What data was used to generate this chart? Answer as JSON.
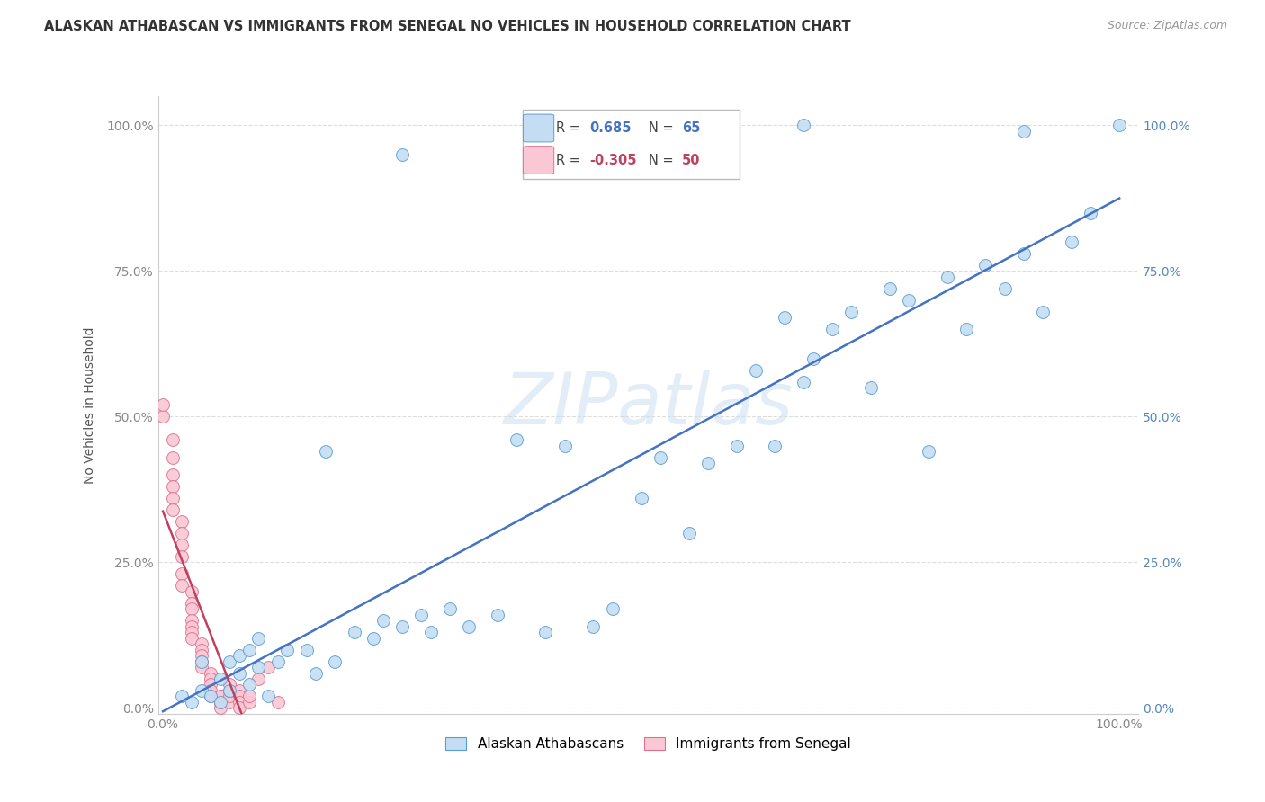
{
  "title": "ALASKAN ATHABASCAN VS IMMIGRANTS FROM SENEGAL NO VEHICLES IN HOUSEHOLD CORRELATION CHART",
  "source": "Source: ZipAtlas.com",
  "ylabel": "No Vehicles in Household",
  "blue_r": 0.685,
  "blue_n": 65,
  "pink_r": -0.305,
  "pink_n": 50,
  "blue_color": "#c5ddf2",
  "blue_edge_color": "#5a9fd4",
  "blue_line_color": "#4472c4",
  "pink_color": "#f9c8d4",
  "pink_edge_color": "#e07090",
  "pink_line_color": "#c04060",
  "watermark_color": "#c8ddf0",
  "watermark_text": "ZIPatlas",
  "grid_color": "#dddddd",
  "tick_color": "#888888",
  "right_tick_color": "#5588bb",
  "title_color": "#333333",
  "source_color": "#999999",
  "blue_x": [
    0.02,
    0.03,
    0.04,
    0.04,
    0.05,
    0.06,
    0.06,
    0.07,
    0.07,
    0.08,
    0.08,
    0.09,
    0.09,
    0.1,
    0.1,
    0.11,
    0.12,
    0.13,
    0.15,
    0.16,
    0.17,
    0.18,
    0.2,
    0.22,
    0.23,
    0.25,
    0.27,
    0.28,
    0.3,
    0.32,
    0.35,
    0.37,
    0.4,
    0.42,
    0.45,
    0.47,
    0.5,
    0.52,
    0.55,
    0.57,
    0.6,
    0.62,
    0.64,
    0.65,
    0.67,
    0.68,
    0.7,
    0.72,
    0.74,
    0.76,
    0.78,
    0.8,
    0.82,
    0.84,
    0.86,
    0.88,
    0.9,
    0.92,
    0.95,
    0.97,
    1.0,
    0.25,
    0.48,
    0.67,
    0.9
  ],
  "blue_y": [
    0.02,
    0.01,
    0.03,
    0.08,
    0.02,
    0.01,
    0.05,
    0.03,
    0.08,
    0.06,
    0.09,
    0.04,
    0.1,
    0.07,
    0.12,
    0.02,
    0.08,
    0.1,
    0.1,
    0.06,
    0.44,
    0.08,
    0.13,
    0.12,
    0.15,
    0.14,
    0.16,
    0.13,
    0.17,
    0.14,
    0.16,
    0.46,
    0.13,
    0.45,
    0.14,
    0.17,
    0.36,
    0.43,
    0.3,
    0.42,
    0.45,
    0.58,
    0.45,
    0.67,
    0.56,
    0.6,
    0.65,
    0.68,
    0.55,
    0.72,
    0.7,
    0.44,
    0.74,
    0.65,
    0.76,
    0.72,
    0.78,
    0.68,
    0.8,
    0.85,
    1.0,
    0.95,
    0.99,
    1.0,
    0.99
  ],
  "pink_x": [
    0.0,
    0.0,
    0.01,
    0.01,
    0.01,
    0.01,
    0.01,
    0.01,
    0.02,
    0.02,
    0.02,
    0.02,
    0.02,
    0.02,
    0.03,
    0.03,
    0.03,
    0.03,
    0.03,
    0.03,
    0.03,
    0.04,
    0.04,
    0.04,
    0.04,
    0.04,
    0.05,
    0.05,
    0.05,
    0.05,
    0.05,
    0.06,
    0.06,
    0.06,
    0.06,
    0.06,
    0.06,
    0.07,
    0.07,
    0.07,
    0.07,
    0.08,
    0.08,
    0.08,
    0.08,
    0.09,
    0.09,
    0.1,
    0.11,
    0.12
  ],
  "pink_y": [
    0.5,
    0.52,
    0.46,
    0.43,
    0.4,
    0.38,
    0.36,
    0.34,
    0.32,
    0.3,
    0.28,
    0.26,
    0.23,
    0.21,
    0.2,
    0.18,
    0.17,
    0.15,
    0.14,
    0.13,
    0.12,
    0.11,
    0.1,
    0.09,
    0.08,
    0.07,
    0.06,
    0.05,
    0.04,
    0.03,
    0.02,
    0.01,
    0.02,
    0.01,
    0.0,
    0.01,
    0.02,
    0.01,
    0.02,
    0.03,
    0.04,
    0.03,
    0.02,
    0.01,
    0.0,
    0.01,
    0.02,
    0.05,
    0.07,
    0.01
  ],
  "title_fontsize": 10.5,
  "source_fontsize": 9,
  "axis_label_fontsize": 10,
  "tick_fontsize": 10
}
